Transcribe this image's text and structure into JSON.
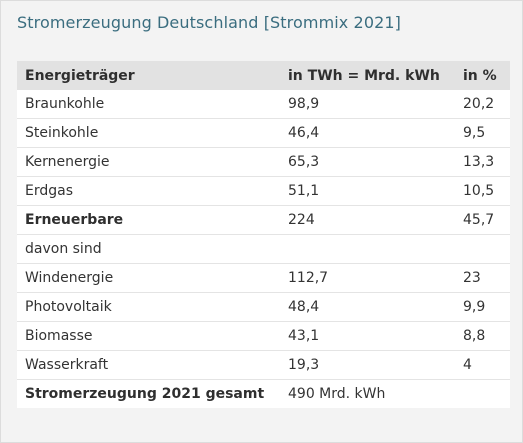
{
  "title": "Stromerzeugung Deutschland [Strommix 2021]",
  "table": {
    "headers": [
      "Energieträger",
      "in TWh = Mrd. kWh",
      "in %"
    ],
    "rows": [
      {
        "label": "Braunkohle",
        "twh": "98,9",
        "pct": "20,2",
        "bold": false
      },
      {
        "label": "Steinkohle",
        "twh": "46,4",
        "pct": "9,5",
        "bold": false
      },
      {
        "label": "Kernenergie",
        "twh": "65,3",
        "pct": "13,3",
        "bold": false
      },
      {
        "label": "Erdgas",
        "twh": "51,1",
        "pct": "10,5",
        "bold": false
      },
      {
        "label": "Erneuerbare",
        "twh": "224",
        "pct": "45,7",
        "bold": true
      },
      {
        "label": "davon sind",
        "twh": "",
        "pct": "",
        "bold": false
      },
      {
        "label": "Windenergie",
        "twh": "112,7",
        "pct": "23",
        "bold": false
      },
      {
        "label": "Photovoltaik",
        "twh": "48,4",
        "pct": "9,9",
        "bold": false
      },
      {
        "label": "Biomasse",
        "twh": "43,1",
        "pct": "8,8",
        "bold": false
      },
      {
        "label": "Wasserkraft",
        "twh": "19,3",
        "pct": "4",
        "bold": false
      },
      {
        "label": "Stromerzeugung 2021 gesamt",
        "twh": "490 Mrd. kWh",
        "pct": "",
        "bold": true
      }
    ]
  }
}
